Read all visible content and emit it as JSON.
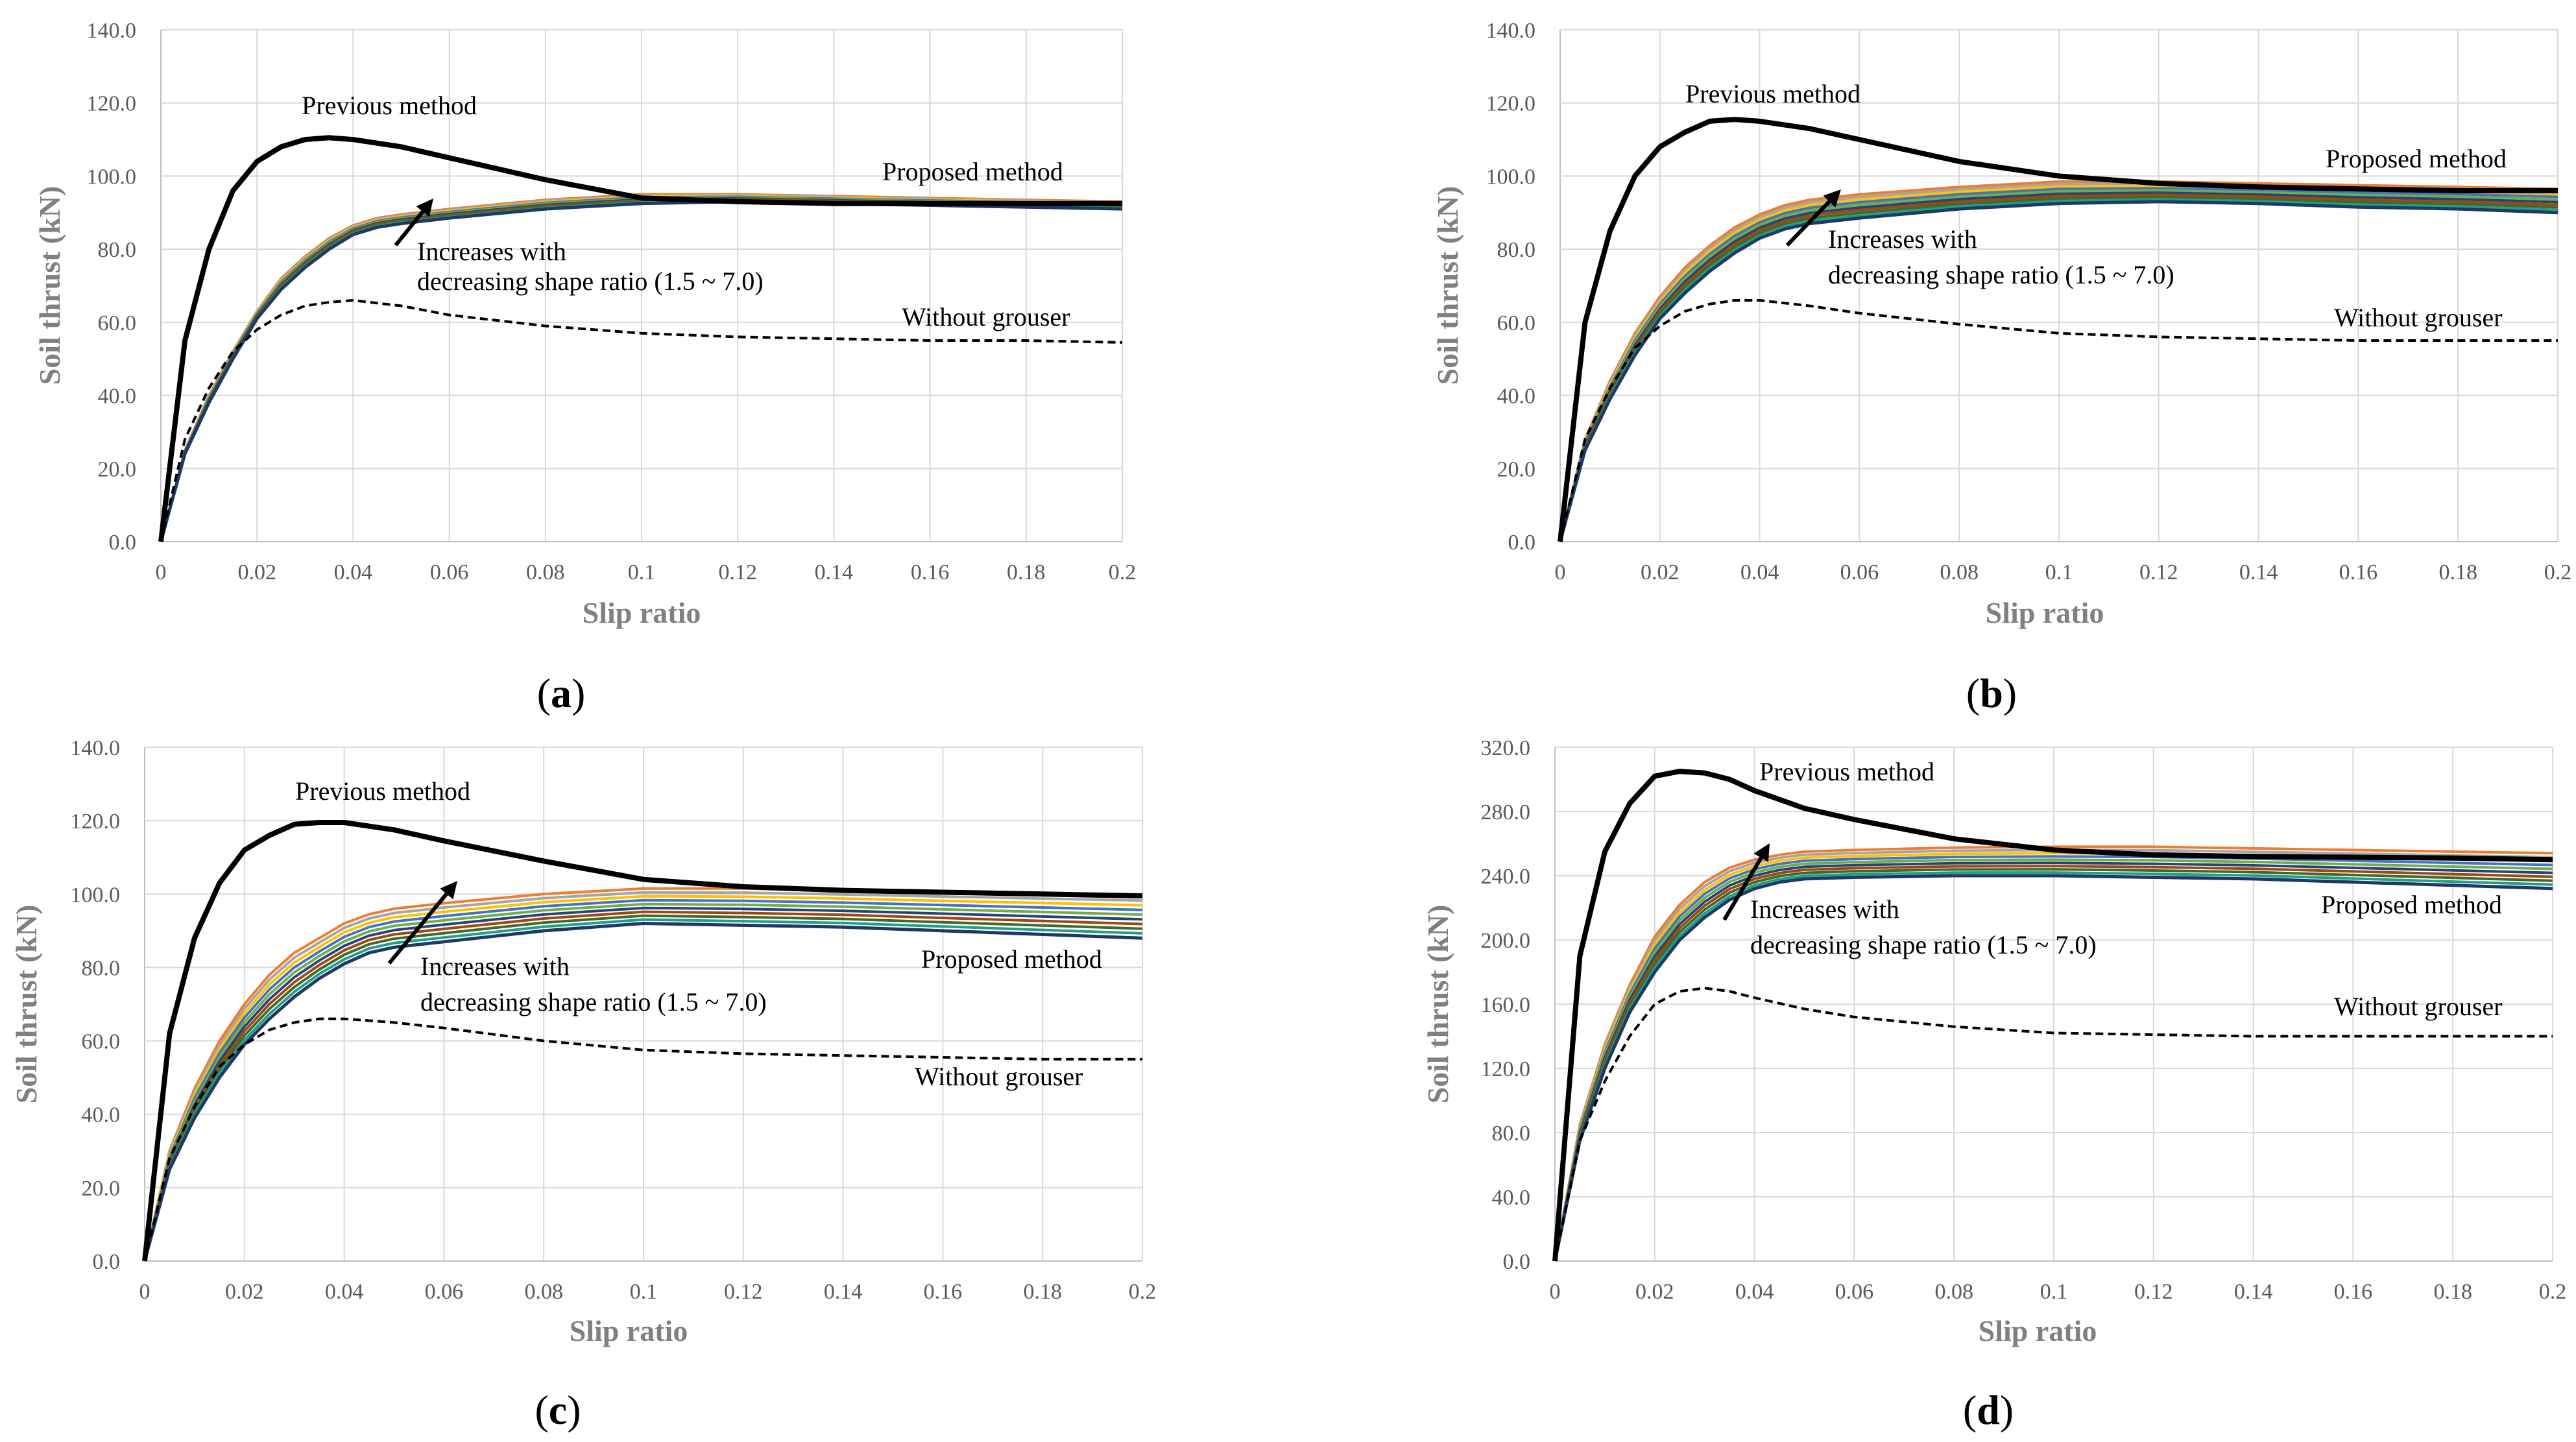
{
  "palette": {
    "grid": "#d9d9d9",
    "axis": "#bfbfbf",
    "previous": "#000000",
    "without": "#000000",
    "arrow": "#000000",
    "family": [
      "#ed7d31",
      "#a5a5a5",
      "#ffc000",
      "#4472c4",
      "#70ad47",
      "#264478",
      "#9e480e",
      "#43682b",
      "#1f9e89",
      "#1f3864"
    ]
  },
  "chart_data": [
    {
      "panel": "a",
      "label_open": "(",
      "label_letter": "a",
      "label_close": ")",
      "type": "line",
      "xlabel": "Slip ratio",
      "ylabel": "Soil thrust (kN)",
      "xlim": [
        0,
        0.2
      ],
      "ylim": [
        0,
        140
      ],
      "xticks": [
        "0",
        "0.02",
        "0.04",
        "0.06",
        "0.08",
        "0.1",
        "0.12",
        "0.14",
        "0.16",
        "0.18",
        "0.2"
      ],
      "yticks": [
        "0.0",
        "20.0",
        "40.0",
        "60.0",
        "80.0",
        "100.0",
        "120.0",
        "140.0"
      ],
      "annotations": {
        "previous": "Previous method",
        "proposed": "Proposed method",
        "without": "Without grouser",
        "increase_line1": "Increases with",
        "increase_line2": "decreasing shape ratio (1.5 ~ 7.0)"
      },
      "series": [
        {
          "name": "Previous method",
          "style": "previous",
          "x": [
            0,
            0.005,
            0.01,
            0.015,
            0.02,
            0.025,
            0.03,
            0.035,
            0.04,
            0.05,
            0.06,
            0.08,
            0.1,
            0.12,
            0.14,
            0.16,
            0.18,
            0.2
          ],
          "y": [
            0,
            55,
            80,
            96,
            104,
            108,
            110,
            110.5,
            110,
            108,
            105,
            99,
            94,
            93,
            92.5,
            92.5,
            92.5,
            92.5
          ]
        },
        {
          "name": "Without grouser",
          "style": "without",
          "x": [
            0,
            0.005,
            0.01,
            0.015,
            0.02,
            0.025,
            0.03,
            0.035,
            0.04,
            0.05,
            0.06,
            0.08,
            0.1,
            0.12,
            0.14,
            0.16,
            0.18,
            0.2
          ],
          "y": [
            0,
            28,
            42,
            52,
            58,
            62,
            64.5,
            65.5,
            66,
            64.5,
            62,
            59,
            57,
            56,
            55.5,
            55,
            55,
            54.5
          ]
        },
        {
          "name": "Proposed method",
          "style": "family",
          "x": [
            0,
            0.005,
            0.01,
            0.015,
            0.02,
            0.025,
            0.03,
            0.035,
            0.04,
            0.045,
            0.05,
            0.06,
            0.08,
            0.1,
            0.12,
            0.14,
            0.16,
            0.18,
            0.2
          ],
          "y_top": [
            0,
            25,
            40,
            52,
            63,
            72,
            78,
            83,
            86.5,
            88.5,
            89.5,
            91,
            93.5,
            95,
            95,
            94.5,
            94,
            93.5,
            93
          ],
          "y_bottom": [
            0,
            24,
            38,
            50,
            61,
            69,
            75,
            80,
            84,
            86,
            87,
            88.5,
            91,
            92.5,
            93,
            92.5,
            92,
            91.5,
            91
          ]
        }
      ]
    },
    {
      "panel": "b",
      "label_open": "(",
      "label_letter": "b",
      "label_close": ")",
      "type": "line",
      "xlabel": "Slip ratio",
      "ylabel": "Soil thrust (kN)",
      "xlim": [
        0,
        0.2
      ],
      "ylim": [
        0,
        140
      ],
      "xticks": [
        "0",
        "0.02",
        "0.04",
        "0.06",
        "0.08",
        "0.1",
        "0.12",
        "0.14",
        "0.16",
        "0.18",
        "0.2"
      ],
      "yticks": [
        "0.0",
        "20.0",
        "40.0",
        "60.0",
        "80.0",
        "100.0",
        "120.0",
        "140.0"
      ],
      "annotations": {
        "previous": "Previous method",
        "proposed": "Proposed method",
        "without": "Without grouser",
        "increase_line1": "Increases with",
        "increase_line2": "decreasing shape ratio (1.5 ~ 7.0)"
      },
      "series": [
        {
          "name": "Previous method",
          "style": "previous",
          "x": [
            0,
            0.005,
            0.01,
            0.015,
            0.02,
            0.025,
            0.03,
            0.035,
            0.04,
            0.05,
            0.06,
            0.08,
            0.1,
            0.12,
            0.14,
            0.16,
            0.18,
            0.2
          ],
          "y": [
            0,
            60,
            85,
            100,
            108,
            112,
            115,
            115.5,
            115,
            113,
            110,
            104,
            100,
            98,
            97,
            96.5,
            96,
            96
          ]
        },
        {
          "name": "Without grouser",
          "style": "without",
          "x": [
            0,
            0.005,
            0.01,
            0.015,
            0.02,
            0.025,
            0.03,
            0.035,
            0.04,
            0.05,
            0.06,
            0.08,
            0.1,
            0.12,
            0.14,
            0.16,
            0.18,
            0.2
          ],
          "y": [
            0,
            28,
            42,
            53,
            59,
            63,
            65,
            66,
            66,
            64.5,
            62.5,
            59.5,
            57,
            56,
            55.5,
            55,
            55,
            55
          ]
        },
        {
          "name": "Proposed method",
          "style": "family",
          "x": [
            0,
            0.005,
            0.01,
            0.015,
            0.02,
            0.025,
            0.03,
            0.035,
            0.04,
            0.045,
            0.05,
            0.06,
            0.08,
            0.1,
            0.12,
            0.14,
            0.16,
            0.18,
            0.2
          ],
          "y_top": [
            0,
            28,
            44,
            57,
            67,
            75,
            81,
            86,
            89.5,
            92,
            93.5,
            95,
            97,
            98.5,
            98.5,
            98,
            97.5,
            97,
            96.5
          ],
          "y_bottom": [
            0,
            25,
            39,
            51,
            61,
            68,
            74,
            79,
            83,
            85.5,
            87,
            88.5,
            91,
            92.5,
            93,
            92.5,
            91.5,
            91,
            90
          ]
        }
      ]
    },
    {
      "panel": "c",
      "label_open": "(",
      "label_letter": "c",
      "label_close": ")",
      "type": "line",
      "xlabel": "Slip ratio",
      "ylabel": "Soil thrust (kN)",
      "xlim": [
        0,
        0.2
      ],
      "ylim": [
        0,
        140
      ],
      "xticks": [
        "0",
        "0.02",
        "0.04",
        "0.06",
        "0.08",
        "0.1",
        "0.12",
        "0.14",
        "0.16",
        "0.18",
        "0.2"
      ],
      "yticks": [
        "0.0",
        "20.0",
        "40.0",
        "60.0",
        "80.0",
        "100.0",
        "120.0",
        "140.0"
      ],
      "annotations": {
        "previous": "Previous method",
        "proposed": "Proposed method",
        "without": "Without grouser",
        "increase_line1": "Increases with",
        "increase_line2": "decreasing shape ratio (1.5 ~ 7.0)"
      },
      "series": [
        {
          "name": "Previous method",
          "style": "previous",
          "x": [
            0,
            0.005,
            0.01,
            0.015,
            0.02,
            0.025,
            0.03,
            0.035,
            0.04,
            0.05,
            0.06,
            0.08,
            0.1,
            0.12,
            0.14,
            0.16,
            0.18,
            0.2
          ],
          "y": [
            0,
            62,
            88,
            103,
            112,
            116,
            119,
            119.5,
            119.5,
            117.5,
            114.5,
            109,
            104,
            102,
            101,
            100.5,
            100,
            99.5
          ]
        },
        {
          "name": "Without grouser",
          "style": "without",
          "x": [
            0,
            0.005,
            0.01,
            0.015,
            0.02,
            0.025,
            0.03,
            0.035,
            0.04,
            0.05,
            0.06,
            0.08,
            0.1,
            0.12,
            0.14,
            0.16,
            0.18,
            0.2
          ],
          "y": [
            0,
            28,
            42,
            53,
            59,
            63,
            65,
            66,
            66,
            65,
            63.5,
            60,
            57.5,
            56.5,
            56,
            55.5,
            55,
            55
          ]
        },
        {
          "name": "Proposed method",
          "style": "family",
          "x": [
            0,
            0.005,
            0.01,
            0.015,
            0.02,
            0.025,
            0.03,
            0.035,
            0.04,
            0.045,
            0.05,
            0.06,
            0.08,
            0.1,
            0.12,
            0.14,
            0.16,
            0.18,
            0.2
          ],
          "y_top": [
            0,
            30,
            47,
            60,
            70,
            78,
            84,
            88,
            92,
            94.5,
            96,
            97.5,
            100,
            101.5,
            101.5,
            101,
            100.5,
            100,
            99.5
          ],
          "y_bottom": [
            0,
            25,
            39,
            50,
            59,
            66,
            72,
            77,
            81,
            84,
            85.5,
            87,
            90,
            92,
            91.5,
            91,
            90,
            89,
            88
          ]
        }
      ]
    },
    {
      "panel": "d",
      "label_open": "(",
      "label_letter": "d",
      "label_close": ")",
      "type": "line",
      "xlabel": "Slip ratio",
      "ylabel": "Soil thrust (kN)",
      "xlim": [
        0,
        0.2
      ],
      "ylim": [
        0,
        320
      ],
      "xticks": [
        "0",
        "0.02",
        "0.04",
        "0.06",
        "0.08",
        "0.1",
        "0.12",
        "0.14",
        "0.16",
        "0.18",
        "0.2"
      ],
      "yticks": [
        "0.0",
        "40.0",
        "80.0",
        "120.0",
        "160.0",
        "200.0",
        "240.0",
        "280.0",
        "320.0"
      ],
      "annotations": {
        "previous": "Previous method",
        "proposed": "Proposed method",
        "without": "Without grouser",
        "increase_line1": "Increases with",
        "increase_line2": "decreasing shape ratio (1.5 ~ 7.0)"
      },
      "series": [
        {
          "name": "Previous method",
          "style": "previous",
          "x": [
            0,
            0.005,
            0.01,
            0.015,
            0.02,
            0.025,
            0.03,
            0.035,
            0.04,
            0.05,
            0.06,
            0.08,
            0.1,
            0.12,
            0.14,
            0.16,
            0.18,
            0.2
          ],
          "y": [
            0,
            190,
            255,
            285,
            302,
            305,
            304,
            300,
            293,
            282,
            275,
            263,
            256,
            253,
            252,
            251.5,
            251,
            250
          ]
        },
        {
          "name": "Without grouser",
          "style": "without",
          "x": [
            0,
            0.005,
            0.01,
            0.015,
            0.02,
            0.025,
            0.03,
            0.035,
            0.04,
            0.05,
            0.06,
            0.08,
            0.1,
            0.12,
            0.14,
            0.16,
            0.18,
            0.2
          ],
          "y": [
            0,
            75,
            112,
            140,
            160,
            168,
            170,
            168,
            164,
            157,
            152,
            146,
            142,
            141,
            140,
            140,
            140,
            140
          ]
        },
        {
          "name": "Proposed method",
          "style": "family",
          "x": [
            0,
            0.005,
            0.01,
            0.015,
            0.02,
            0.025,
            0.03,
            0.035,
            0.04,
            0.045,
            0.05,
            0.06,
            0.08,
            0.1,
            0.12,
            0.14,
            0.16,
            0.18,
            0.2
          ],
          "y_top": [
            0,
            85,
            135,
            172,
            202,
            222,
            236,
            245,
            250,
            253,
            255,
            256,
            257.5,
            258,
            258,
            257,
            256,
            255,
            254
          ],
          "y_bottom": [
            0,
            75,
            120,
            155,
            180,
            200,
            214,
            225,
            232,
            236,
            238,
            239,
            240,
            240,
            239,
            238,
            236,
            234,
            232
          ]
        }
      ]
    }
  ]
}
